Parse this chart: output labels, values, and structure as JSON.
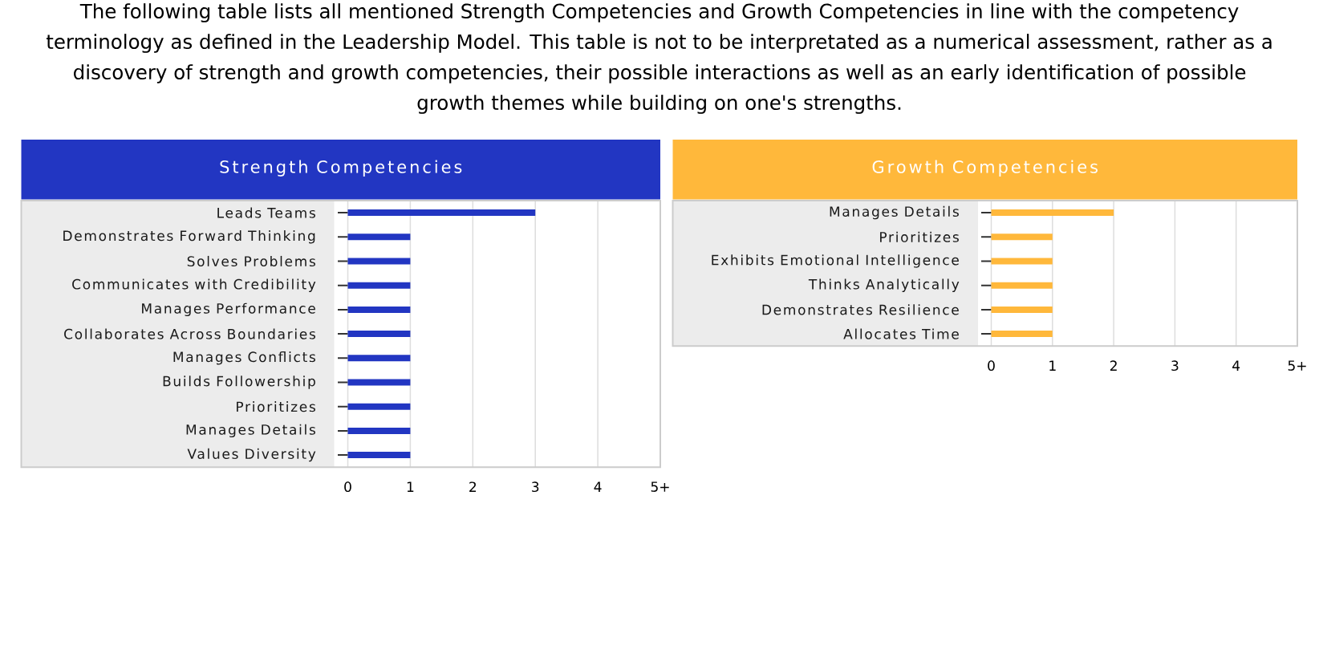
{
  "chart_data": [
    {
      "type": "other",
      "annotations": [
        "The following table lists all mentioned Strength Competencies and Growth Competencies in line with the competency terminology as defined in the Leadership Model. This table is not to be interpretated as a numerical assessment, rather as a discovery of strength and growth competencies, their possible interactions as well as an early identification of possible growth themes while building on one's strengths."
      ]
    },
    {
      "type": "bar",
      "orientation": "horizontal",
      "title": "Strength Competencies",
      "categories": [
        "Leads Teams",
        "Demonstrates Forward Thinking",
        "Solves Problems",
        "Communicates with Credibility",
        "Manages Performance",
        "Collaborates Across Boundaries",
        "Manages Conflicts",
        "Builds Followership",
        "Prioritizes",
        "Manages Details",
        "Values Diversity"
      ],
      "values": [
        3,
        1,
        1,
        1,
        1,
        1,
        1,
        1,
        1,
        1,
        1
      ],
      "color": "#2236c2",
      "xlim": [
        0,
        5
      ],
      "xticks": [
        0,
        1,
        2,
        3,
        4,
        {
          "value": 5,
          "label": "5+"
        }
      ],
      "grid": "x"
    },
    {
      "type": "bar",
      "orientation": "horizontal",
      "title": "Growth Competencies",
      "categories": [
        "Manages Details",
        "Prioritizes",
        "Exhibits Emotional Intelligence",
        "Thinks Analytically",
        "Demonstrates Resilience",
        "Allocates Time"
      ],
      "values": [
        2,
        1,
        1,
        1,
        1,
        1
      ],
      "color": "#ffb83b",
      "xlim": [
        0,
        5
      ],
      "xticks": [
        0,
        1,
        2,
        3,
        4,
        {
          "value": 5,
          "label": "5+"
        }
      ],
      "grid": "x"
    }
  ]
}
